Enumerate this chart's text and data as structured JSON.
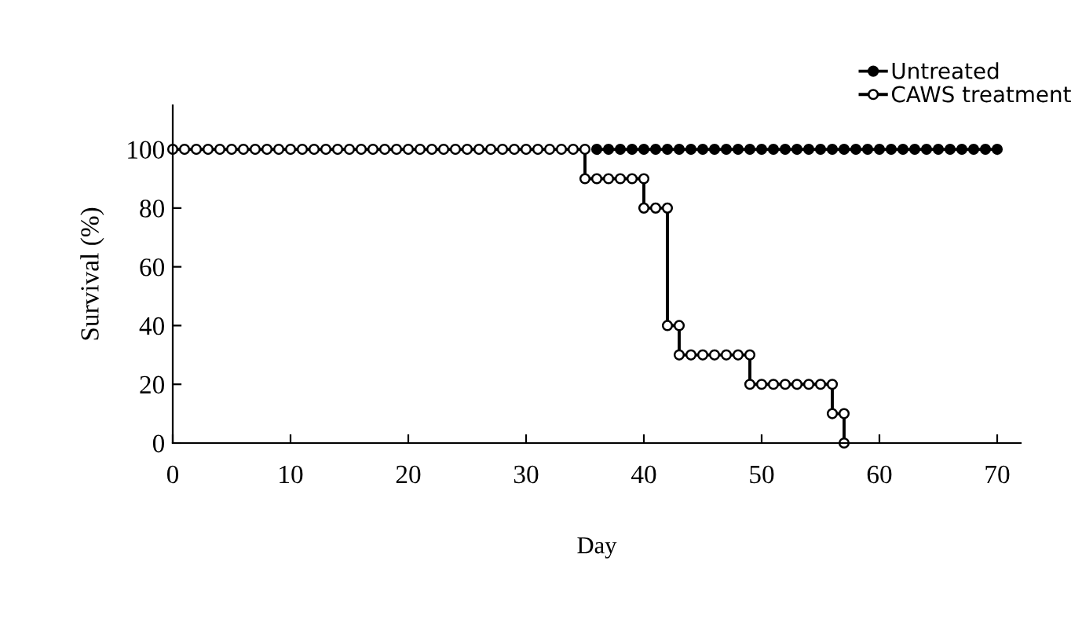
{
  "chart_data": {
    "type": "line",
    "xlabel": "Day",
    "ylabel": "Survival (%)",
    "xlim": [
      0,
      72
    ],
    "ylim": [
      0,
      115
    ],
    "xticks": [
      0,
      10,
      20,
      30,
      40,
      50,
      60,
      70
    ],
    "yticks": [
      0,
      20,
      40,
      60,
      80,
      100
    ],
    "grid": false,
    "legend": "top right",
    "marker": "circle",
    "line_style": "solid",
    "series": [
      {
        "name": "Untreated",
        "color": "#000000",
        "x": [
          36,
          37,
          38,
          39,
          40,
          41,
          42,
          43,
          44,
          45,
          46,
          47,
          48,
          49,
          50,
          51,
          52,
          53,
          54,
          55,
          56,
          57,
          58,
          59,
          60,
          61,
          62,
          63,
          64,
          65,
          66,
          67,
          68,
          69,
          70
        ],
        "values": [
          100,
          100,
          100,
          100,
          100,
          100,
          100,
          100,
          100,
          100,
          100,
          100,
          100,
          100,
          100,
          100,
          100,
          100,
          100,
          100,
          100,
          100,
          100,
          100,
          100,
          100,
          100,
          100,
          100,
          100,
          100,
          100,
          100,
          100,
          100
        ]
      },
      {
        "name": "CAWS treatment",
        "color": "#000000",
        "x": [
          0,
          1,
          2,
          3,
          4,
          5,
          6,
          7,
          8,
          9,
          10,
          11,
          12,
          13,
          14,
          15,
          16,
          17,
          18,
          19,
          20,
          21,
          22,
          23,
          24,
          25,
          26,
          27,
          28,
          29,
          30,
          31,
          32,
          33,
          34,
          35,
          35,
          36,
          37,
          38,
          39,
          40,
          40,
          41,
          42,
          42,
          43,
          43,
          44,
          45,
          46,
          47,
          48,
          49,
          49,
          50,
          51,
          52,
          53,
          54,
          55,
          56,
          56,
          57,
          57
        ],
        "values": [
          100,
          100,
          100,
          100,
          100,
          100,
          100,
          100,
          100,
          100,
          100,
          100,
          100,
          100,
          100,
          100,
          100,
          100,
          100,
          100,
          100,
          100,
          100,
          100,
          100,
          100,
          100,
          100,
          100,
          100,
          100,
          100,
          100,
          100,
          100,
          100,
          90,
          90,
          90,
          90,
          90,
          90,
          80,
          80,
          80,
          40,
          40,
          30,
          30,
          30,
          30,
          30,
          30,
          30,
          20,
          20,
          20,
          20,
          20,
          20,
          20,
          20,
          10,
          10,
          0
        ]
      }
    ]
  }
}
